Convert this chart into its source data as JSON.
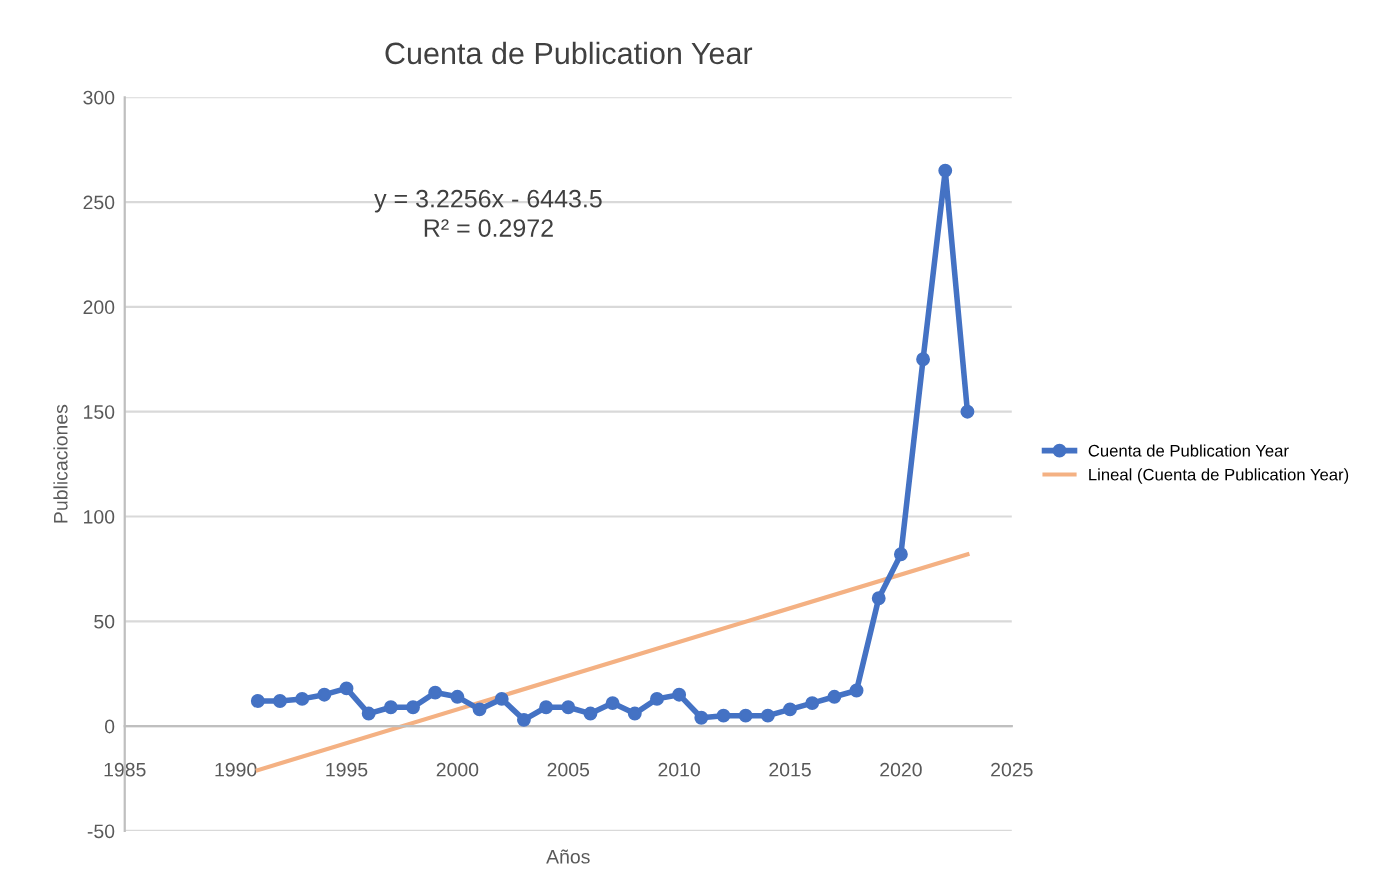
{
  "chart_data": {
    "type": "line",
    "title": "Cuenta de Publication Year",
    "xlabel": "Años",
    "ylabel": "Publicaciones",
    "xlim": [
      1985,
      2025
    ],
    "xticks": [
      1985,
      1990,
      1995,
      2000,
      2005,
      2010,
      2015,
      2020,
      2025
    ],
    "ylim": [
      -50,
      300
    ],
    "yticks": [
      -50,
      0,
      50,
      100,
      150,
      200,
      250,
      300
    ],
    "grid": "y",
    "legend": "right",
    "annotations": [
      "y = 3.2256x - 6443.5",
      "R² = 0.2972"
    ],
    "series": [
      {
        "name": "Cuenta de Publication Year",
        "color": "#4472c4",
        "marker": "circle",
        "x": [
          1991,
          1992,
          1993,
          1994,
          1995,
          1996,
          1997,
          1998,
          1999,
          2000,
          2001,
          2002,
          2003,
          2004,
          2005,
          2006,
          2007,
          2008,
          2009,
          2010,
          2011,
          2012,
          2013,
          2014,
          2015,
          2016,
          2017,
          2018,
          2019,
          2020,
          2021,
          2022,
          2023
        ],
        "values": [
          12,
          12,
          13,
          15,
          18,
          6,
          9,
          9,
          16,
          14,
          8,
          13,
          3,
          9,
          9,
          6,
          11,
          6,
          13,
          15,
          4,
          5,
          5,
          5,
          8,
          11,
          14,
          17,
          61,
          82,
          175,
          265,
          150
        ]
      },
      {
        "name": "Lineal (Cuenta de Publication Year)",
        "color": "#f4b183",
        "marker": "none",
        "x": [
          1991,
          2023
        ],
        "values": [
          -21,
          82
        ]
      }
    ]
  }
}
